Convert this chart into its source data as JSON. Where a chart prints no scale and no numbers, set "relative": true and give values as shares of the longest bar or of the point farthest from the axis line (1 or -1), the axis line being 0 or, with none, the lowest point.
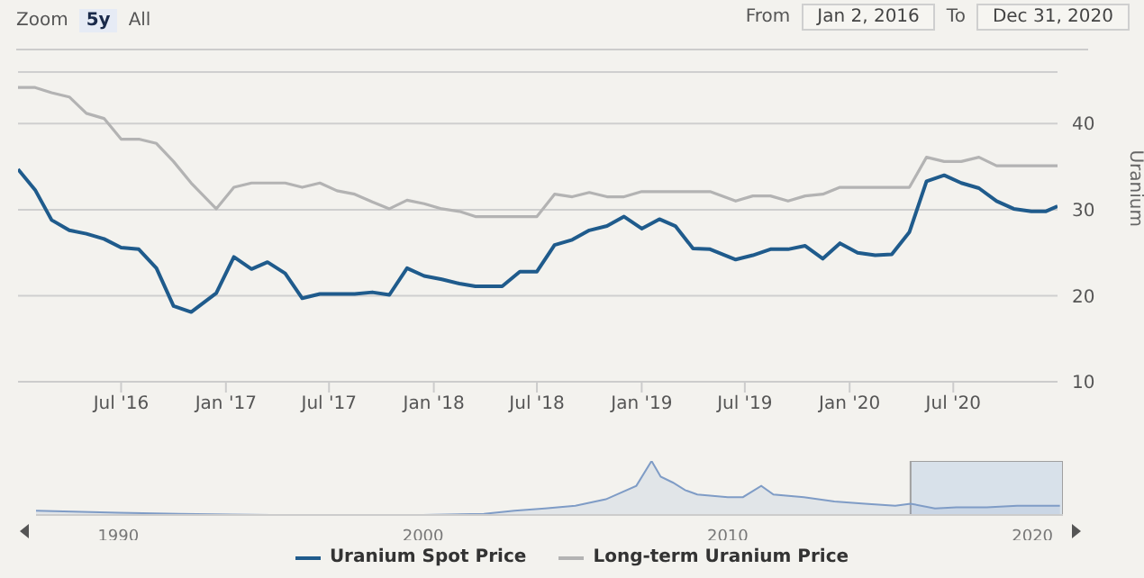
{
  "chart_data": [
    {
      "type": "line",
      "annotations": [
        "Zoom",
        "5y",
        "All",
        "From",
        "Jan 2, 2016",
        "To",
        "Dec 31, 2020"
      ],
      "ylabel": "Uranium",
      "x": [
        "2016-01-02",
        "2016-02-01",
        "2016-03-01",
        "2016-04-01",
        "2016-05-01",
        "2016-06-01",
        "2016-07-01",
        "2016-08-01",
        "2016-09-01",
        "2016-10-01",
        "2016-11-01",
        "2016-12-15",
        "2017-01-15",
        "2017-02-15",
        "2017-03-15",
        "2017-04-15",
        "2017-05-15",
        "2017-06-15",
        "2017-07-15",
        "2017-08-15",
        "2017-09-15",
        "2017-10-15",
        "2017-11-15",
        "2017-12-15",
        "2018-01-15",
        "2018-02-15",
        "2018-03-15",
        "2018-05-01",
        "2018-06-01",
        "2018-07-01",
        "2018-08-01",
        "2018-09-01",
        "2018-10-01",
        "2018-11-01",
        "2018-12-01",
        "2019-01-01",
        "2019-02-01",
        "2019-03-01",
        "2019-04-01",
        "2019-05-01",
        "2019-06-15",
        "2019-07-15",
        "2019-08-15",
        "2019-09-15",
        "2019-10-15",
        "2019-11-15",
        "2019-12-15",
        "2020-01-15",
        "2020-02-15",
        "2020-03-15",
        "2020-04-15",
        "2020-05-15",
        "2020-06-15",
        "2020-07-15",
        "2020-08-15",
        "2020-09-15",
        "2020-10-15",
        "2020-11-15",
        "2020-12-10",
        "2020-12-31"
      ],
      "series": [
        {
          "name": "Uranium Spot Price",
          "color": "#1f5b8c",
          "values": [
            34.7,
            32.3,
            28.8,
            27.6,
            27.2,
            26.6,
            25.6,
            25.4,
            23.2,
            18.8,
            18.1,
            20.3,
            24.5,
            23.1,
            23.9,
            22.6,
            19.7,
            20.2,
            20.2,
            20.2,
            20.4,
            20.1,
            23.2,
            22.3,
            21.9,
            21.4,
            21.1,
            21.1,
            22.8,
            22.8,
            25.9,
            26.5,
            27.6,
            28.1,
            29.2,
            27.8,
            28.9,
            28.1,
            25.5,
            25.4,
            24.2,
            24.7,
            25.4,
            25.4,
            25.8,
            24.3,
            26.1,
            25.0,
            24.7,
            24.8,
            27.4,
            33.3,
            34.0,
            33.1,
            32.5,
            31.0,
            30.1,
            29.8,
            29.8,
            30.4
          ]
        },
        {
          "name": "Long-term Uranium Price",
          "color": "#b3b3b3",
          "values": [
            44.2,
            44.2,
            43.6,
            43.1,
            41.2,
            40.6,
            38.2,
            38.2,
            37.7,
            35.6,
            33.1,
            30.1,
            32.6,
            33.1,
            33.1,
            33.1,
            32.6,
            33.1,
            32.2,
            31.8,
            30.9,
            30.1,
            31.1,
            30.7,
            30.1,
            29.8,
            29.2,
            29.2,
            29.2,
            29.2,
            31.8,
            31.5,
            32.0,
            31.5,
            31.5,
            32.1,
            32.1,
            32.1,
            32.1,
            32.1,
            31.0,
            31.6,
            31.6,
            31.0,
            31.6,
            31.8,
            32.6,
            32.6,
            32.6,
            32.6,
            32.6,
            36.1,
            35.6,
            35.6,
            36.1,
            35.1,
            35.1,
            35.1,
            35.1,
            35.1
          ]
        }
      ],
      "xlim": [
        "2016-01-02",
        "2020-12-31"
      ],
      "xticks": [
        {
          "value": "2016-07-01",
          "label": "Jul '16"
        },
        {
          "value": "2017-01-01",
          "label": "Jan '17"
        },
        {
          "value": "2017-07-01",
          "label": "Jul '17"
        },
        {
          "value": "2018-01-01",
          "label": "Jan '18"
        },
        {
          "value": "2018-07-01",
          "label": "Jul '18"
        },
        {
          "value": "2019-01-01",
          "label": "Jan '19"
        },
        {
          "value": "2019-07-01",
          "label": "Jul '19"
        },
        {
          "value": "2020-01-01",
          "label": "Jan '20"
        },
        {
          "value": "2020-07-01",
          "label": "Jul '20"
        }
      ],
      "ylim": [
        10,
        46
      ],
      "yticks": [
        10,
        20,
        30,
        40
      ],
      "grid": "y",
      "legend": "bottom",
      "marker": "none",
      "line_style": "solid"
    },
    {
      "type": "area",
      "relative": true,
      "tick_labels": "x",
      "x": [
        1987.3,
        1990,
        1992,
        1995,
        2000,
        2002,
        2003,
        2004,
        2005,
        2006,
        2007,
        2007.5,
        2007.8,
        2008.2,
        2008.6,
        2009,
        2010,
        2010.5,
        2011.1,
        2011.5,
        2012.5,
        2013.5,
        2014.5,
        2015.5,
        2016,
        2016.8,
        2017.5,
        2018.5,
        2019.5,
        2020.9
      ],
      "series": [
        {
          "color": "#7f9cc6",
          "values": [
            0.08,
            0.04,
            0.02,
            0,
            0,
            0.02,
            0.08,
            0.12,
            0.17,
            0.29,
            0.54,
            1,
            0.71,
            0.6,
            0.46,
            0.38,
            0.33,
            0.33,
            0.54,
            0.38,
            0.33,
            0.25,
            0.21,
            0.17,
            0.21,
            0.12,
            0.14,
            0.14,
            0.17,
            0.17
          ]
        }
      ],
      "xlim": [
        1987.3,
        2021
      ],
      "xticks": [
        1990,
        2000,
        2010,
        2020
      ],
      "bands": [
        {
          "axis": "x",
          "from": 2016,
          "to": 2021,
          "color": "#c6d6e8"
        }
      ]
    }
  ]
}
